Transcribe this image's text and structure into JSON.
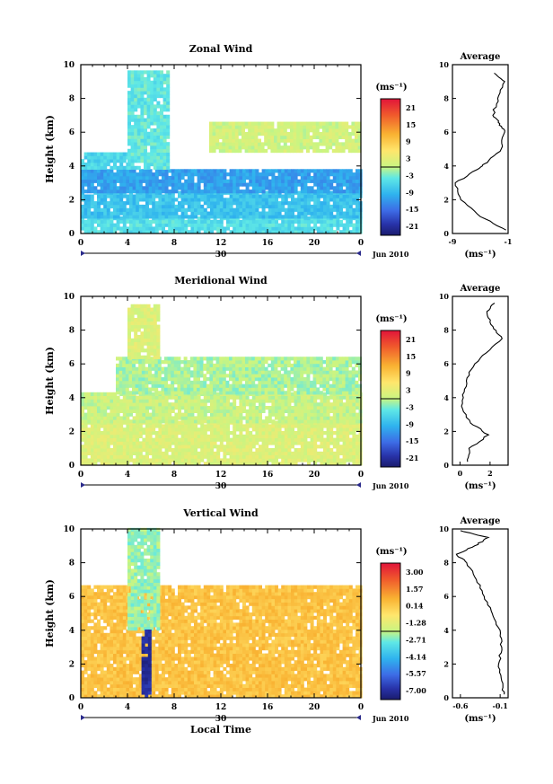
{
  "chart_data": [
    {
      "type": "heatmap",
      "title": "Zonal Wind",
      "ylabel": "Height (km)",
      "xlabel": "",
      "xlim": [
        0,
        24
      ],
      "ylim": [
        0,
        10
      ],
      "xticks": [
        "0",
        "4",
        "8",
        "12",
        "16",
        "20",
        "0"
      ],
      "yticks": [
        "0",
        "2",
        "4",
        "6",
        "8",
        "10"
      ],
      "date_label": "30",
      "month_label": "Jun 2010",
      "colorbar": {
        "title": "(ms⁻¹)",
        "ticks": [
          "21",
          "15",
          "9",
          "3",
          "-3",
          "-9",
          "-15",
          "-21"
        ],
        "min": -24,
        "max": 24
      },
      "layers": [
        {
          "x": [
            0,
            24
          ],
          "y": [
            0,
            0.9
          ],
          "value": -5
        },
        {
          "x": [
            0,
            24
          ],
          "y": [
            0.9,
            2.4
          ],
          "value": -8
        },
        {
          "x": [
            0,
            24
          ],
          "y": [
            2.4,
            3.8
          ],
          "value": -11
        },
        {
          "x": [
            0,
            4
          ],
          "y": [
            3.8,
            4.8
          ],
          "value": -6
        },
        {
          "x": [
            11,
            24
          ],
          "y": [
            4.8,
            6.5
          ],
          "value": 1
        },
        {
          "x": [
            4,
            7.5
          ],
          "y": [
            3.8,
            9.6
          ],
          "value": -4
        }
      ],
      "average": {
        "title": "Average",
        "xlabel": "(ms⁻¹)",
        "xticks": [
          "-9",
          "-1"
        ],
        "xlim": [
          -9,
          -1
        ],
        "heights": [
          0.2,
          1,
          2,
          3,
          3.8,
          4.2,
          5,
          6,
          6.5,
          7,
          8,
          9,
          9.5
        ],
        "values": [
          -1.3,
          -5,
          -7.8,
          -8.6,
          -5.4,
          -4,
          -2,
          -1.5,
          -2.2,
          -3.2,
          -2.5,
          -1.5,
          -3
        ]
      }
    },
    {
      "type": "heatmap",
      "title": "Meridional Wind",
      "ylabel": "Height (km)",
      "xlabel": "",
      "xlim": [
        0,
        24
      ],
      "ylim": [
        0,
        10
      ],
      "xticks": [
        "0",
        "4",
        "8",
        "12",
        "16",
        "20",
        "0"
      ],
      "yticks": [
        "0",
        "2",
        "4",
        "6",
        "8",
        "10"
      ],
      "date_label": "30",
      "month_label": "Jun 2010",
      "colorbar": {
        "title": "(ms⁻¹)",
        "ticks": [
          "21",
          "15",
          "9",
          "3",
          "-3",
          "-9",
          "-15",
          "-21"
        ],
        "min": -24,
        "max": 24
      },
      "layers": [
        {
          "x": [
            0,
            24
          ],
          "y": [
            0,
            2.5
          ],
          "value": 2
        },
        {
          "x": [
            0,
            24
          ],
          "y": [
            2.5,
            4.2
          ],
          "value": 0.5
        },
        {
          "x": [
            3,
            24
          ],
          "y": [
            4.2,
            6.3
          ],
          "value": -1
        },
        {
          "x": [
            4,
            6.5
          ],
          "y": [
            6.3,
            9.5
          ],
          "value": 2
        }
      ],
      "average": {
        "title": "Average",
        "xlabel": "(ms⁻¹)",
        "xticks": [
          "0",
          "2"
        ],
        "xlim": [
          -0.5,
          3.2
        ],
        "heights": [
          0.2,
          1,
          1.8,
          2.5,
          3.5,
          4.5,
          5.5,
          6.5,
          7.5,
          8.2,
          9,
          9.6
        ],
        "values": [
          0.5,
          0.6,
          1.9,
          0.7,
          0.1,
          0.3,
          0.6,
          1.5,
          2.8,
          2.2,
          1.8,
          2.3
        ]
      }
    },
    {
      "type": "heatmap",
      "title": "Vertical Wind",
      "ylabel": "Height (km)",
      "xlabel": "Local Time",
      "xlim": [
        0,
        24
      ],
      "ylim": [
        0,
        10
      ],
      "xticks": [
        "0",
        "4",
        "8",
        "12",
        "16",
        "20",
        "0"
      ],
      "yticks": [
        "0",
        "2",
        "4",
        "6",
        "8",
        "10"
      ],
      "date_label": "30",
      "month_label": "Jun 2010",
      "colorbar": {
        "title": "(ms⁻¹)",
        "ticks": [
          "3.00",
          "1.57",
          "0.14",
          "-1.28",
          "-2.71",
          "-4.14",
          "-5.57",
          "-7.00"
        ],
        "min": -7.7,
        "max": 3.7
      },
      "layers": [
        {
          "x": [
            0,
            24
          ],
          "y": [
            0,
            6.5
          ],
          "value": 0.3
        },
        {
          "x": [
            4,
            6.5
          ],
          "y": [
            4,
            10
          ],
          "value": -2.4
        },
        {
          "x": [
            5.2,
            5.8
          ],
          "y": [
            0,
            4
          ],
          "value": -7
        }
      ],
      "average": {
        "title": "Average",
        "xlabel": "(ms⁻¹)",
        "xticks": [
          "-0.6",
          "-0.1"
        ],
        "xlim": [
          -0.7,
          0
        ],
        "heights": [
          0.2,
          1,
          2,
          3,
          4,
          5,
          6,
          7,
          8,
          8.5,
          9,
          9.5,
          9.9
        ],
        "values": [
          -0.05,
          -0.08,
          -0.12,
          -0.08,
          -0.1,
          -0.2,
          -0.3,
          -0.4,
          -0.52,
          -0.65,
          -0.42,
          -0.25,
          -0.6
        ]
      }
    }
  ]
}
